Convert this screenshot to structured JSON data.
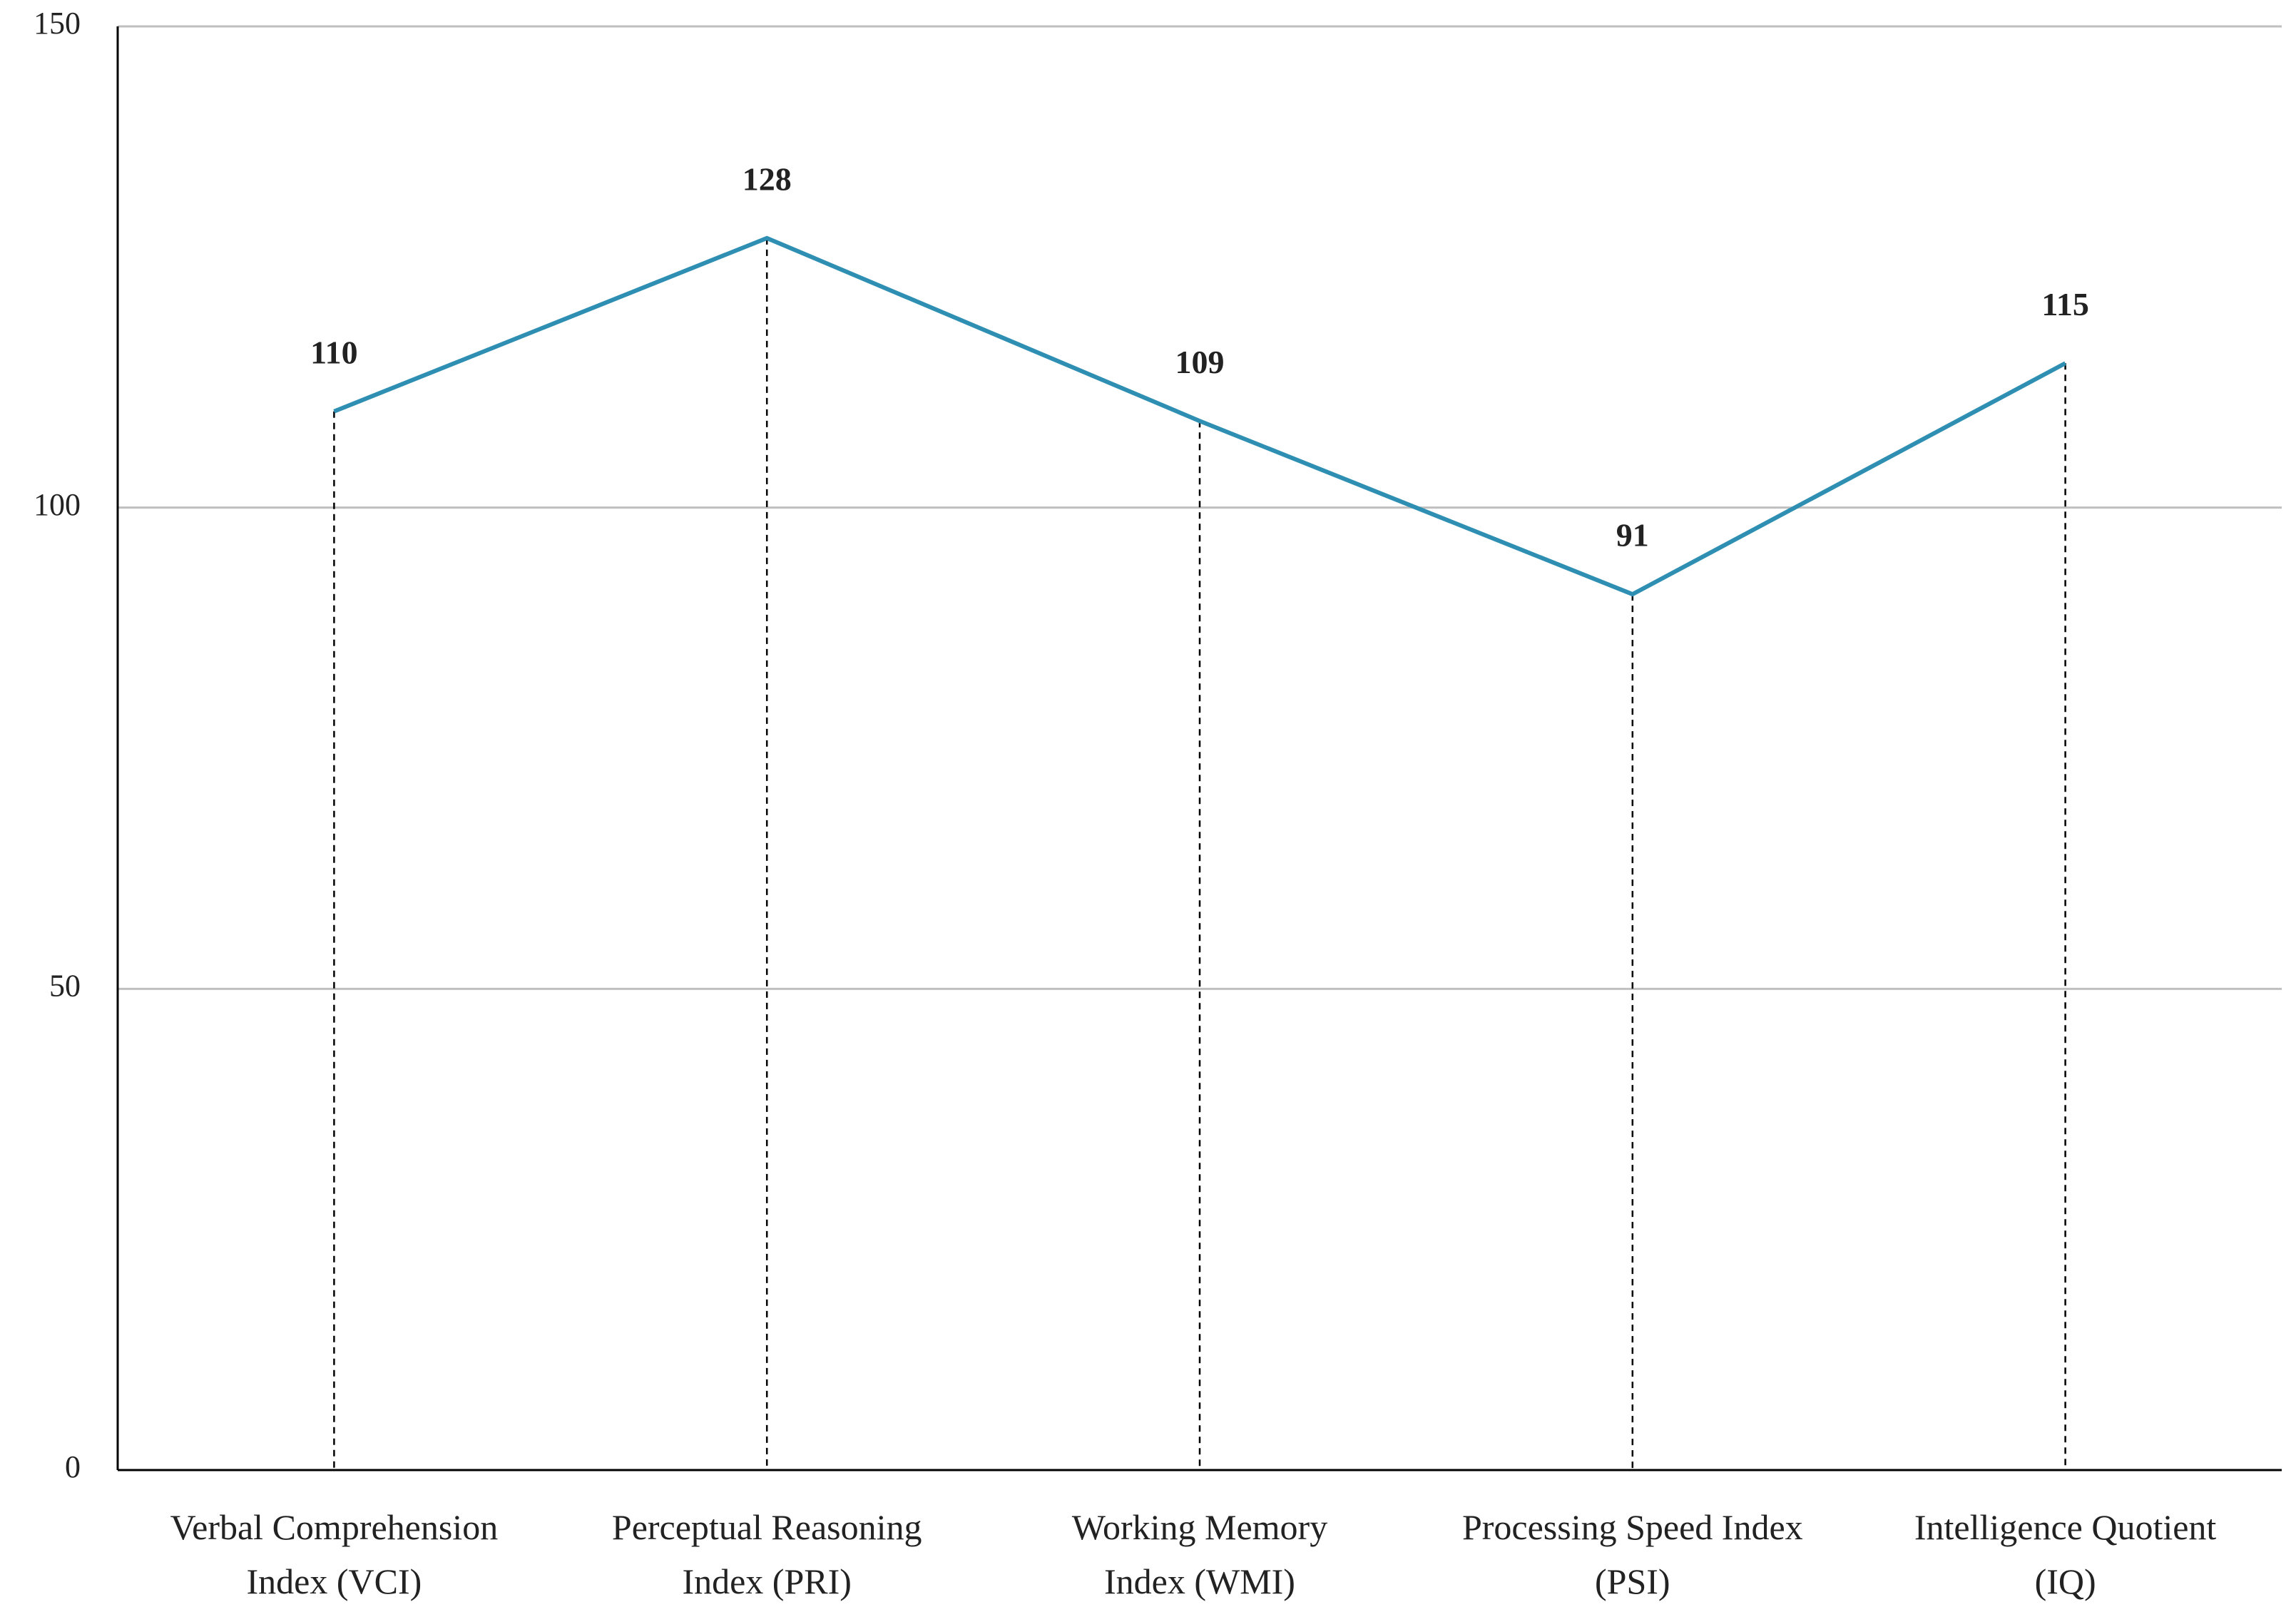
{
  "chart_data": {
    "type": "line",
    "categories": [
      [
        "Verbal Comprehension",
        "Index (VCI)"
      ],
      [
        "Perceptual Reasoning",
        "Index (PRI)"
      ],
      [
        "Working Memory",
        "Index (WMI)"
      ],
      [
        "Processing Speed Index",
        "(PSI)"
      ],
      [
        "Intelligence Quotient",
        "(IQ)"
      ]
    ],
    "values": [
      110,
      128,
      109,
      91,
      115
    ],
    "color": "#2e8fb3",
    "ylim": [
      0,
      150
    ],
    "yticks": [
      0,
      50,
      100,
      150
    ],
    "grid": true,
    "drop_lines": true
  }
}
